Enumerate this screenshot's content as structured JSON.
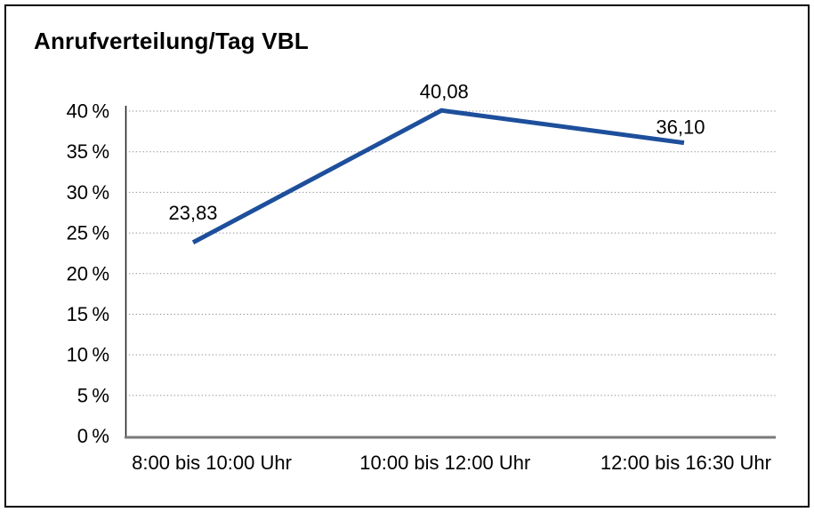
{
  "figure": {
    "background": "#ffffff",
    "frame_border_color": "#000000"
  },
  "chart_data": {
    "type": "line",
    "title": "Anrufverteilung/Tag VBL",
    "xlabel": "",
    "ylabel": "",
    "categories": [
      "8:00 bis 10:00 Uhr",
      "10:00 bis 12:00 Uhr",
      "12:00 bis 16:30 Uhr"
    ],
    "values": [
      23.83,
      40.08,
      36.1
    ],
    "value_labels": [
      "23,83",
      "40,08",
      "36,10"
    ],
    "ylim": [
      0,
      40
    ],
    "ytick_step": 5,
    "yticks": [
      {
        "value": 40,
        "label": "40 %"
      },
      {
        "value": 35,
        "label": "35 %"
      },
      {
        "value": 30,
        "label": "30 %"
      },
      {
        "value": 25,
        "label": "25 %"
      },
      {
        "value": 20,
        "label": "20 %"
      },
      {
        "value": 15,
        "label": "15 %"
      },
      {
        "value": 10,
        "label": "10 %"
      },
      {
        "value": 5,
        "label": "5 %"
      },
      {
        "value": 0,
        "label": "0 %"
      }
    ],
    "grid": "horizontal-dotted",
    "legend": "none",
    "colors": {
      "line": "#1d4f9b",
      "grid": "#8c8c8c",
      "y_axis": "#1a1a1a",
      "baseline": "#7a7a7a",
      "text": "#000000"
    }
  }
}
